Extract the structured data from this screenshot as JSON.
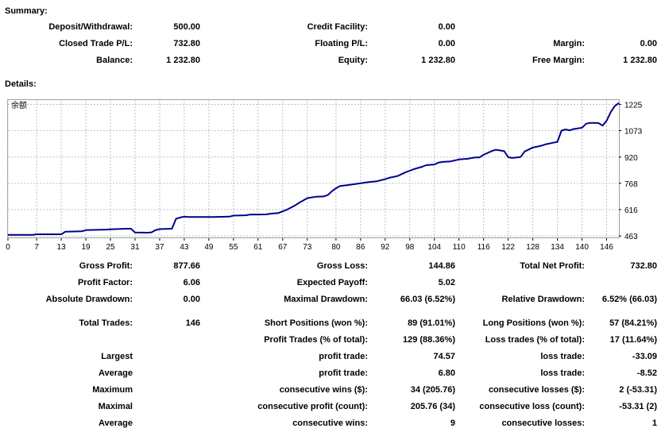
{
  "summary": {
    "heading": "Summary:",
    "deposit_label": "Deposit/Withdrawal:",
    "deposit_value": "500.00",
    "credit_label": "Credit Facility:",
    "credit_value": "0.00",
    "closed_label": "Closed Trade P/L:",
    "closed_value": "732.80",
    "floating_label": "Floating P/L:",
    "floating_value": "0.00",
    "margin_label": "Margin:",
    "margin_value": "0.00",
    "balance_label": "Balance:",
    "balance_value": "1 232.80",
    "equity_label": "Equity:",
    "equity_value": "1 232.80",
    "free_margin_label": "Free Margin:",
    "free_margin_value": "1 232.80"
  },
  "details": {
    "heading": "Details:"
  },
  "chart_data": {
    "type": "line",
    "title": "余额",
    "xlabel": "",
    "ylabel": "",
    "x_ticks": [
      0,
      7,
      13,
      19,
      25,
      31,
      37,
      43,
      49,
      55,
      61,
      67,
      73,
      80,
      86,
      92,
      98,
      104,
      110,
      116,
      122,
      128,
      134,
      140,
      146
    ],
    "y_ticks": [
      463,
      616,
      768,
      920,
      1073,
      1225
    ],
    "xlim": [
      0,
      149
    ],
    "ylim": [
      450,
      1250
    ],
    "grid": true,
    "series": [
      {
        "color": "#00008b",
        "points": [
          [
            0,
            470
          ],
          [
            6,
            470
          ],
          [
            7,
            473
          ],
          [
            13,
            473
          ],
          [
            14,
            488
          ],
          [
            18,
            490
          ],
          [
            19,
            497
          ],
          [
            24,
            500
          ],
          [
            25,
            502
          ],
          [
            29,
            505
          ],
          [
            30,
            505
          ],
          [
            31,
            483
          ],
          [
            34,
            482
          ],
          [
            35,
            484
          ],
          [
            36,
            497
          ],
          [
            37,
            503
          ],
          [
            40,
            505
          ],
          [
            41,
            563
          ],
          [
            42,
            570
          ],
          [
            43,
            575
          ],
          [
            44,
            573
          ],
          [
            50,
            573
          ],
          [
            54,
            575
          ],
          [
            55,
            581
          ],
          [
            58,
            583
          ],
          [
            59,
            587
          ],
          [
            63,
            588
          ],
          [
            64,
            592
          ],
          [
            66,
            596
          ],
          [
            68,
            615
          ],
          [
            70,
            640
          ],
          [
            71,
            655
          ],
          [
            73,
            682
          ],
          [
            75,
            690
          ],
          [
            77,
            692
          ],
          [
            78,
            700
          ],
          [
            79,
            722
          ],
          [
            80,
            739
          ],
          [
            81,
            752
          ],
          [
            83,
            758
          ],
          [
            86,
            768
          ],
          [
            88,
            775
          ],
          [
            90,
            780
          ],
          [
            92,
            792
          ],
          [
            93,
            800
          ],
          [
            95,
            810
          ],
          [
            97,
            832
          ],
          [
            99,
            850
          ],
          [
            101,
            864
          ],
          [
            102,
            873
          ],
          [
            104,
            877
          ],
          [
            105,
            888
          ],
          [
            106,
            892
          ],
          [
            108,
            895
          ],
          [
            110,
            906
          ],
          [
            112,
            910
          ],
          [
            114,
            918
          ],
          [
            115,
            918
          ],
          [
            116,
            933
          ],
          [
            118,
            955
          ],
          [
            119,
            962
          ],
          [
            121,
            955
          ],
          [
            122,
            919
          ],
          [
            123,
            915
          ],
          [
            125,
            920
          ],
          [
            126,
            952
          ],
          [
            128,
            975
          ],
          [
            130,
            985
          ],
          [
            131,
            993
          ],
          [
            133,
            1003
          ],
          [
            134,
            1008
          ],
          [
            135,
            1073
          ],
          [
            136,
            1080
          ],
          [
            137,
            1075
          ],
          [
            138,
            1082
          ],
          [
            140,
            1090
          ],
          [
            141,
            1113
          ],
          [
            142,
            1118
          ],
          [
            144,
            1117
          ],
          [
            145,
            1102
          ],
          [
            146,
            1130
          ],
          [
            147,
            1180
          ],
          [
            148,
            1215
          ],
          [
            149,
            1232.8
          ]
        ]
      }
    ]
  },
  "stats": {
    "gross_profit_label": "Gross Profit:",
    "gross_profit_value": "877.66",
    "gross_loss_label": "Gross Loss:",
    "gross_loss_value": "144.86",
    "total_net_label": "Total Net Profit:",
    "total_net_value": "732.80",
    "profit_factor_label": "Profit Factor:",
    "profit_factor_value": "6.06",
    "expected_payoff_label": "Expected Payoff:",
    "expected_payoff_value": "5.02",
    "abs_drawdown_label": "Absolute Drawdown:",
    "abs_drawdown_value": "0.00",
    "max_drawdown_label": "Maximal Drawdown:",
    "max_drawdown_value": "66.03 (6.52%)",
    "rel_drawdown_label": "Relative Drawdown:",
    "rel_drawdown_value": "6.52% (66.03)",
    "total_trades_label": "Total Trades:",
    "total_trades_value": "146",
    "short_label": "Short Positions (won %):",
    "short_value": "89 (91.01%)",
    "long_label": "Long Positions (won %):",
    "long_value": "57 (84.21%)",
    "profit_trades_label": "Profit Trades (% of total):",
    "profit_trades_value": "129 (88.36%)",
    "loss_trades_label": "Loss trades (% of total):",
    "loss_trades_value": "17 (11.64%)",
    "largest_label": "Largest",
    "largest_profit_label": "profit trade:",
    "largest_profit_value": "74.57",
    "largest_loss_label": "loss trade:",
    "largest_loss_value": "-33.09",
    "average_label": "Average",
    "average_profit_label": "profit trade:",
    "average_profit_value": "6.80",
    "average_loss_label": "loss trade:",
    "average_loss_value": "-8.52",
    "maximum_label": "Maximum",
    "max_wins_label": "consecutive wins ($):",
    "max_wins_value": "34 (205.76)",
    "max_losses_label": "consecutive losses ($):",
    "max_losses_value": "2 (-53.31)",
    "maximal_label": "Maximal",
    "maximal_profit_label": "consecutive profit (count):",
    "maximal_profit_value": "205.76 (34)",
    "maximal_loss_label": "consecutive loss (count):",
    "maximal_loss_value": "-53.31 (2)",
    "average2_label": "Average",
    "avg_wins_label": "consecutive wins:",
    "avg_wins_value": "9",
    "avg_losses_label": "consecutive losses:",
    "avg_losses_value": "1"
  }
}
